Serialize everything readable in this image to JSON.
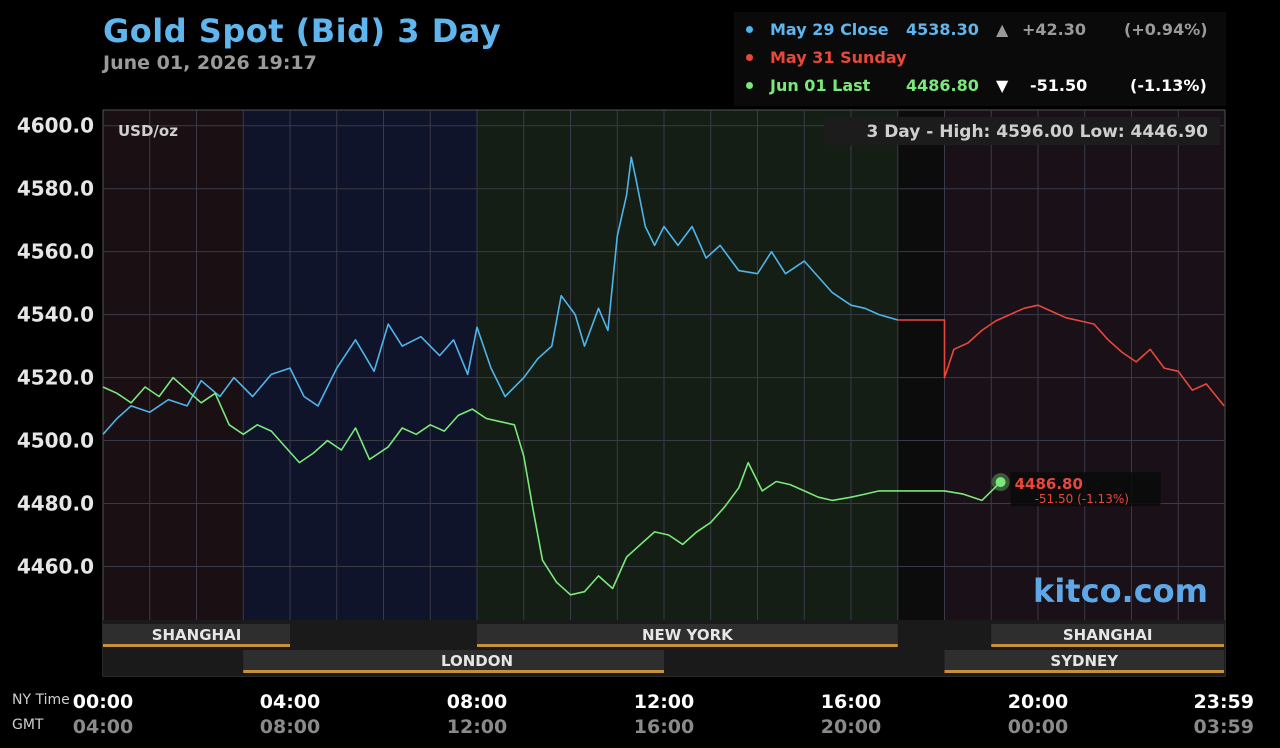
{
  "header": {
    "title": "Gold Spot (Bid) 3 Day",
    "datetime": "June 01, 2026 19:17"
  },
  "legend": [
    {
      "label": "May 29 Close",
      "value": "4538.30",
      "arrow": "▲",
      "change": "+42.30",
      "pct": "(+0.94%)",
      "color": "#4fb4ea",
      "label_color": "#5fb6ee"
    },
    {
      "label": "May 31 Sunday",
      "value": "",
      "arrow": "",
      "change": "",
      "pct": "",
      "color": "#e8483c",
      "label_color": "#e8483c"
    },
    {
      "label": "Jun 01 Last",
      "value": "4486.80",
      "arrow": "▼",
      "change": "-51.50",
      "pct": "(-1.13%)",
      "color": "#7ae87a",
      "label_color": "#7ae87a"
    }
  ],
  "chart_data": {
    "type": "line",
    "title": "Gold Spot (Bid) 3 Day",
    "ylabel": "USD/oz",
    "ylim": [
      4443,
      4605
    ],
    "y_ticks": [
      "4600.0",
      "4580.0",
      "4560.0",
      "4540.0",
      "4520.0",
      "4500.0",
      "4480.0",
      "4460.0"
    ],
    "x_ticks_ny": [
      "00:00",
      "04:00",
      "08:00",
      "12:00",
      "16:00",
      "20:00",
      "23:59"
    ],
    "x_ticks_gmt": [
      "04:00",
      "08:00",
      "12:00",
      "16:00",
      "20:00",
      "00:00",
      "03:59"
    ],
    "x_axis_name_ny": "NY Time",
    "x_axis_name_gmt": "GMT",
    "stats": "3 Day - High: 4596.00  Low: 4446.90",
    "watermark": "kitco.com",
    "last_label": "4486.80",
    "last_change": "-51.50 (-1.13%)",
    "sessions_top": [
      {
        "name": "SHANGHAI",
        "start": 0,
        "end": 4
      },
      {
        "name": "NEW YORK",
        "start": 8,
        "end": 17
      },
      {
        "name": "SHANGHAI",
        "start": 19,
        "end": 23.98
      }
    ],
    "sessions_bottom": [
      {
        "name": "",
        "start": 3,
        "end": 4
      },
      {
        "name": "LONDON",
        "start": 4,
        "end": 12
      },
      {
        "name": "SYDNEY",
        "start": 18,
        "end": 23.98
      }
    ],
    "series": [
      {
        "name": "May 29 Close",
        "color": "#4fb4ea",
        "x": [
          0,
          0.3,
          0.6,
          1.0,
          1.4,
          1.8,
          2.1,
          2.5,
          2.8,
          3.2,
          3.6,
          4.0,
          4.3,
          4.6,
          5.0,
          5.4,
          5.8,
          6.1,
          6.4,
          6.8,
          7.2,
          7.5,
          7.8,
          8.0,
          8.3,
          8.6,
          9.0,
          9.3,
          9.6,
          9.8,
          10.1,
          10.3,
          10.6,
          10.8,
          11.0,
          11.2,
          11.3,
          11.4,
          11.6,
          11.8,
          12.0,
          12.3,
          12.6,
          12.9,
          13.2,
          13.6,
          14.0,
          14.3,
          14.6,
          15.0,
          15.3,
          15.6,
          16.0,
          16.3,
          16.6,
          17.0
        ],
        "y": [
          4502,
          4507,
          4511,
          4509,
          4513,
          4511,
          4519,
          4514,
          4520,
          4514,
          4521,
          4523,
          4514,
          4511,
          4523,
          4532,
          4522,
          4537,
          4530,
          4533,
          4527,
          4532,
          4521,
          4536,
          4523,
          4514,
          4520,
          4526,
          4530,
          4546,
          4540,
          4530,
          4542,
          4535,
          4565,
          4578,
          4590,
          4583,
          4568,
          4562,
          4568,
          4562,
          4568,
          4558,
          4562,
          4554,
          4553,
          4560,
          4553,
          4557,
          4552,
          4547,
          4543,
          4542,
          4540,
          4538.3
        ]
      },
      {
        "name": "May 31 Sunday",
        "color": "#e8483c",
        "x": [
          17.0,
          18.0,
          18.0,
          18.2,
          18.5,
          18.8,
          19.1,
          19.4,
          19.7,
          20.0,
          20.3,
          20.6,
          20.9,
          21.2,
          21.5,
          21.8,
          22.1,
          22.4,
          22.7,
          23.0,
          23.3,
          23.6,
          23.98
        ],
        "y": [
          4538.3,
          4538.3,
          4520,
          4529,
          4531,
          4535,
          4538,
          4540,
          4542,
          4543,
          4541,
          4539,
          4538,
          4537,
          4532,
          4528,
          4525,
          4529,
          4523,
          4522,
          4516,
          4518,
          4511
        ]
      },
      {
        "name": "Jun 01 Last",
        "color": "#7ae87a",
        "x": [
          0,
          0.3,
          0.6,
          0.9,
          1.2,
          1.5,
          1.8,
          2.1,
          2.4,
          2.7,
          3.0,
          3.3,
          3.6,
          3.9,
          4.2,
          4.5,
          4.8,
          5.1,
          5.4,
          5.7,
          6.1,
          6.4,
          6.7,
          7.0,
          7.3,
          7.6,
          7.9,
          8.2,
          8.5,
          8.8,
          9.0,
          9.2,
          9.4,
          9.7,
          10.0,
          10.3,
          10.6,
          10.9,
          11.2,
          11.5,
          11.8,
          12.1,
          12.4,
          12.7,
          13.0,
          13.3,
          13.6,
          13.8,
          14.1,
          14.4,
          14.7,
          15.0,
          15.3,
          15.6,
          16.0,
          16.3,
          16.6,
          17.0,
          18.0,
          18.4,
          18.8,
          19.2
        ],
        "y": [
          4517,
          4515,
          4512,
          4517,
          4514,
          4520,
          4516,
          4512,
          4515,
          4505,
          4502,
          4505,
          4503,
          4498,
          4493,
          4496,
          4500,
          4497,
          4504,
          4494,
          4498,
          4504,
          4502,
          4505,
          4503,
          4508,
          4510,
          4507,
          4506,
          4505,
          4495,
          4478,
          4462,
          4455,
          4451,
          4452,
          4457,
          4453,
          4463,
          4467,
          4471,
          4470,
          4467,
          4471,
          4474,
          4479,
          4485,
          4493,
          4484,
          4487,
          4486,
          4484,
          4482,
          4481,
          4482,
          4483,
          4484,
          4484,
          4484,
          4483,
          4481,
          4486.8
        ]
      }
    ]
  }
}
